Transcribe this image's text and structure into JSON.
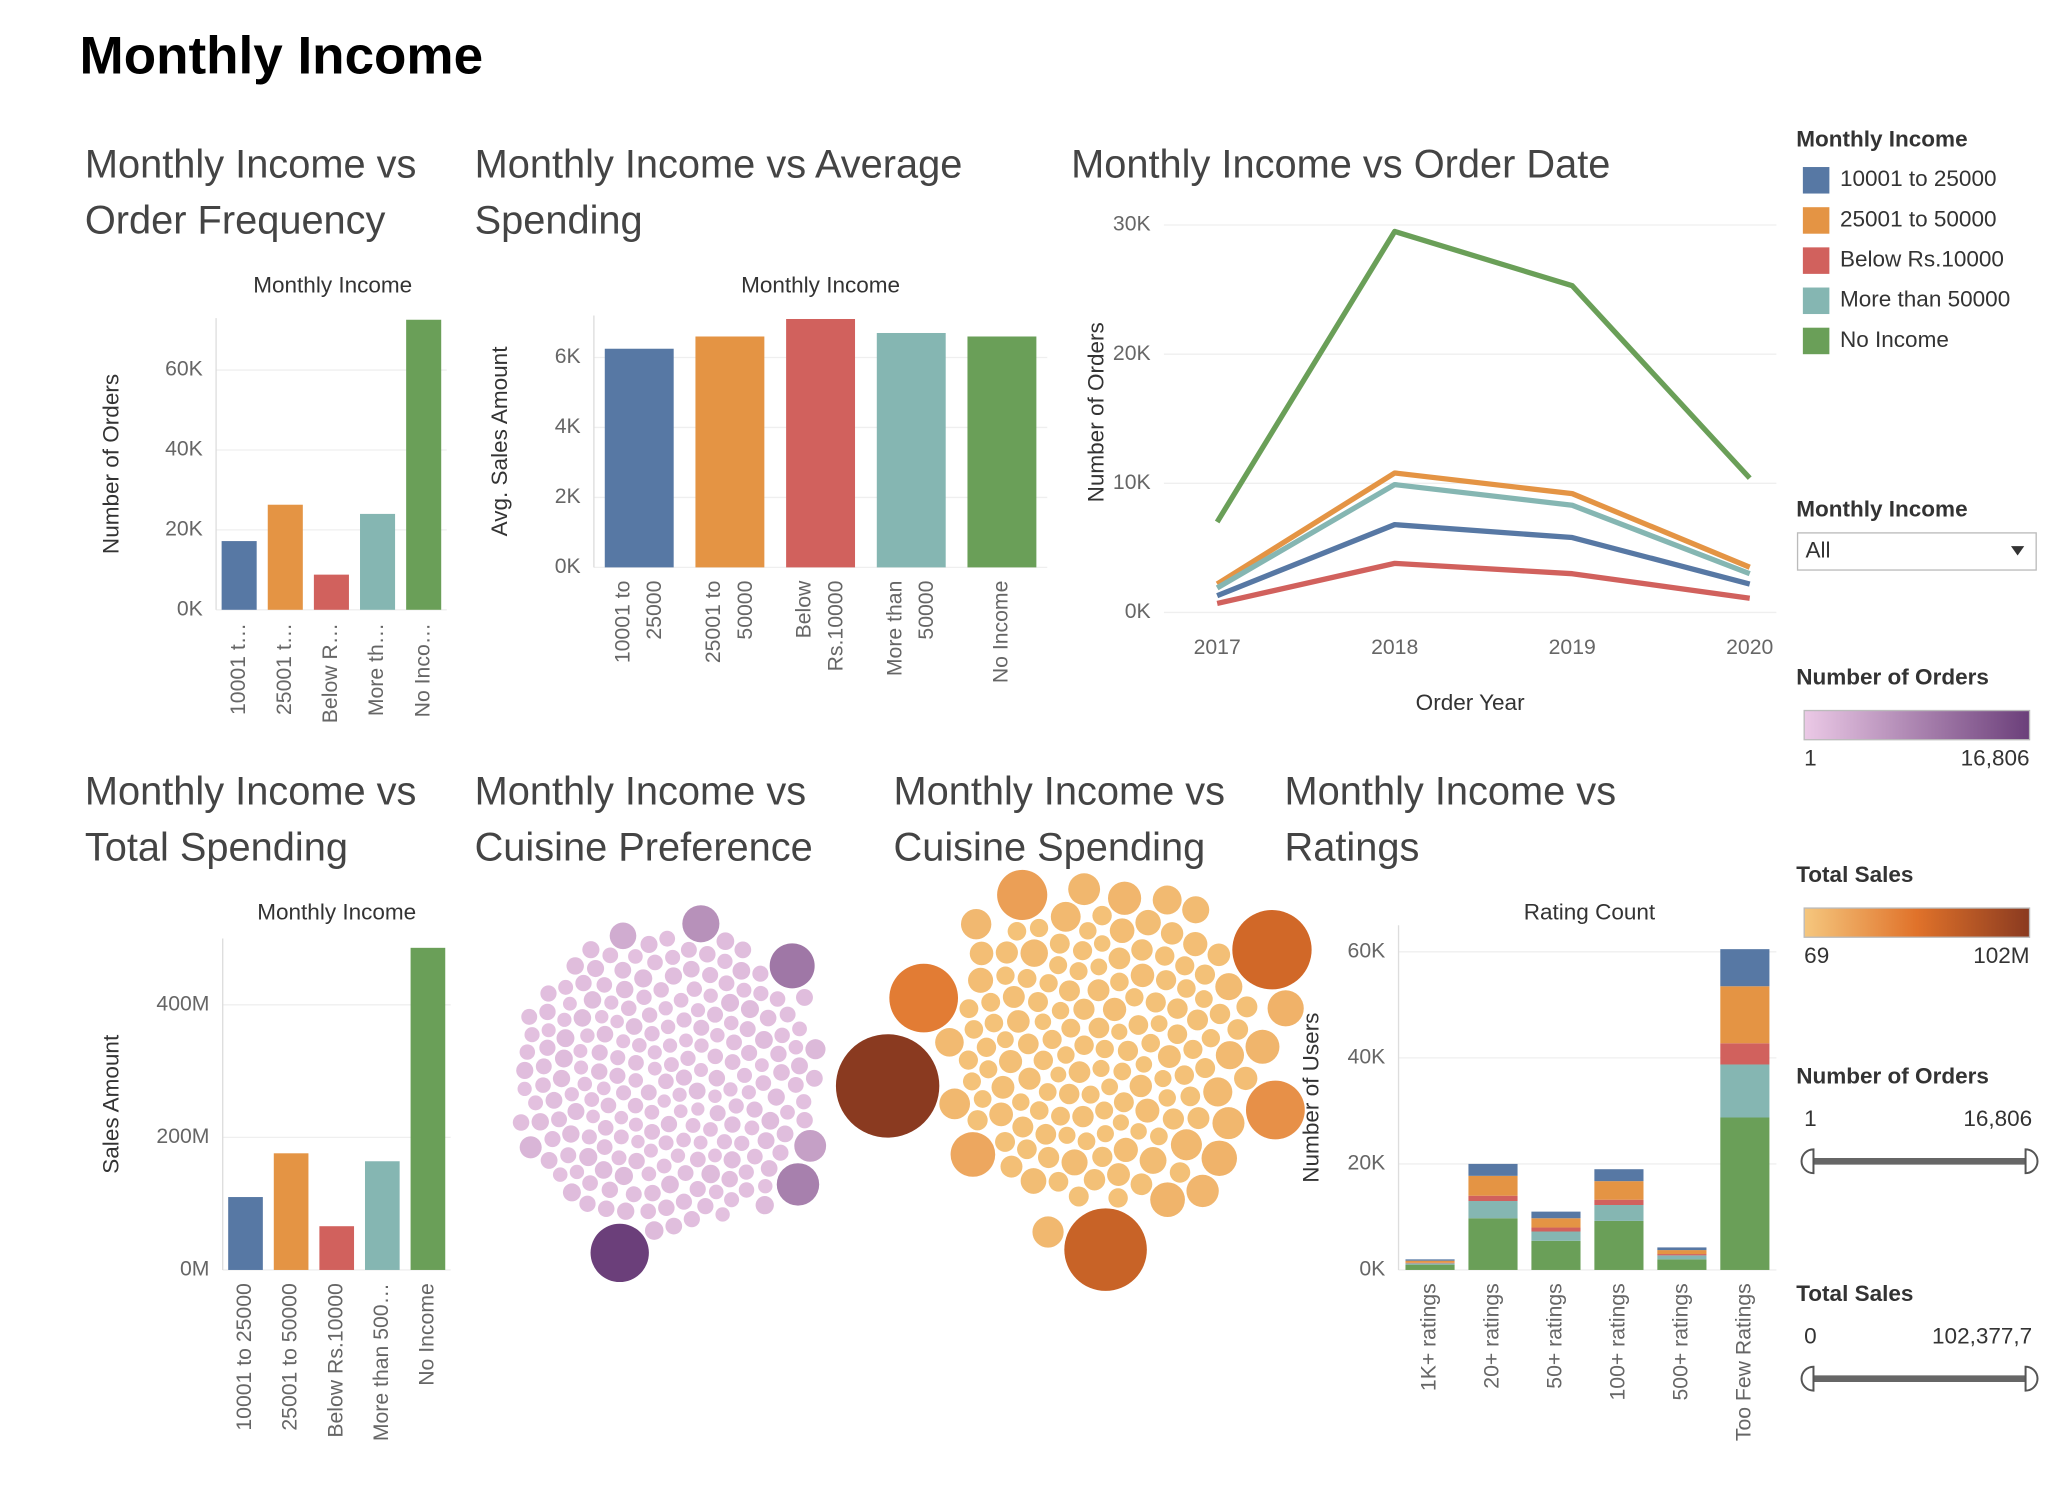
{
  "title": "Monthly Income",
  "filters": [
    {
      "title": "Monthly Income",
      "selected": "All"
    },
    {
      "title": "Number of Orders",
      "min": 1,
      "max": {
        "value": 16806,
        "label": "16,806"
      }
    },
    {
      "title": "Total Sales",
      "min": 0,
      "max": {
        "value": 102377700,
        "label": "102,377,7"
      }
    }
  ],
  "chart_data": [
    {
      "type": "bar",
      "title": "Monthly Income vs Order Frequency",
      "x_header": "Monthly Income",
      "y_label": "Number of Orders",
      "categories": [
        "10001 t…",
        "25001 t…",
        "Below R…",
        "More th…",
        "No Inco…"
      ],
      "values": [
        17200,
        26300,
        8800,
        24000,
        72600
      ],
      "colors": [
        "#5778a4",
        "#e49444",
        "#d1615d",
        "#85b6b2",
        "#6a9f58"
      ],
      "ylim": [
        0,
        73000
      ],
      "yticks": [
        {
          "value": 0,
          "label": "0K"
        },
        {
          "value": 20000,
          "label": "20K"
        },
        {
          "value": 40000,
          "label": "40K"
        },
        {
          "value": 60000,
          "label": "60K"
        }
      ]
    },
    {
      "type": "bar",
      "title": "Monthly Income vs Average Spending",
      "x_header": "Monthly Income",
      "y_label": "Avg. Sales Amount",
      "categories": [
        "10001 to 25000",
        "25001 to 50000",
        "Below Rs.10000",
        "More than 50000",
        "No Income"
      ],
      "values": [
        6250,
        6600,
        7100,
        6700,
        6600
      ],
      "colors": [
        "#5778a4",
        "#e49444",
        "#d1615d",
        "#85b6b2",
        "#6a9f58"
      ],
      "ylim": [
        0,
        7200
      ],
      "yticks": [
        {
          "value": 0,
          "label": "0K"
        },
        {
          "value": 2000,
          "label": "2K"
        },
        {
          "value": 4000,
          "label": "4K"
        },
        {
          "value": 6000,
          "label": "6K"
        }
      ]
    },
    {
      "type": "line",
      "title": "Monthly Income vs Order Date",
      "x_label": "Order Year",
      "y_label": "Number of Orders",
      "legend_title": "Monthly Income",
      "x": [
        2017,
        2018,
        2019,
        2020
      ],
      "series": [
        {
          "name": "10001 to 25000",
          "color": "#5778a4",
          "values": [
            1300,
            6800,
            5800,
            2200
          ]
        },
        {
          "name": "25001 to 50000",
          "color": "#e49444",
          "values": [
            2200,
            10800,
            9200,
            3500
          ]
        },
        {
          "name": "Below Rs.10000",
          "color": "#d1615d",
          "values": [
            700,
            3800,
            3000,
            1100
          ]
        },
        {
          "name": "More than 50000",
          "color": "#85b6b2",
          "values": [
            1900,
            9900,
            8300,
            3000
          ]
        },
        {
          "name": "No Income",
          "color": "#6a9f58",
          "values": [
            7000,
            29500,
            25300,
            10400
          ]
        }
      ],
      "xlim": [
        2016.7,
        2020.15
      ],
      "xticks": [
        2017,
        2018,
        2019,
        2020
      ],
      "ylim": [
        0,
        31000
      ],
      "yticks": [
        {
          "value": 0,
          "label": "0K"
        },
        {
          "value": 10000,
          "label": "10K"
        },
        {
          "value": 20000,
          "label": "20K"
        },
        {
          "value": 30000,
          "label": "30K"
        }
      ]
    },
    {
      "type": "bar",
      "title": "Monthly Income vs Total Spending",
      "x_header": "Monthly Income",
      "y_label": "Sales Amount",
      "categories": [
        "10001 to 25000",
        "25001 to 50000",
        "Below Rs.10000",
        "More than 500…",
        "No Income"
      ],
      "values": [
        110000000,
        176000000,
        66000000,
        164000000,
        486000000
      ],
      "colors": [
        "#5778a4",
        "#e49444",
        "#d1615d",
        "#85b6b2",
        "#6a9f58"
      ],
      "ylim": [
        0,
        500000000
      ],
      "yticks": [
        {
          "value": 0,
          "label": "0M"
        },
        {
          "value": 200000000,
          "label": "200M"
        },
        {
          "value": 400000000,
          "label": "400M"
        }
      ]
    },
    {
      "type": "stacked_bar",
      "title": "Monthly Income vs Ratings",
      "x_header": "Rating Count",
      "y_label": "Number of Users",
      "categories": [
        "1K+ ratings",
        "20+ ratings",
        "50+ ratings",
        "100+ ratings",
        "500+ ratings",
        "Too Few Ratings"
      ],
      "series": [
        {
          "name": "No Income",
          "color": "#6a9f58",
          "values": [
            1000,
            9750,
            5500,
            9250,
            2000,
            28750
          ]
        },
        {
          "name": "More than 50000",
          "color": "#85b6b2",
          "values": [
            250,
            3250,
            1750,
            3000,
            750,
            10000
          ]
        },
        {
          "name": "Below Rs.10000",
          "color": "#d1615d",
          "values": [
            100,
            1000,
            750,
            1000,
            250,
            4000
          ]
        },
        {
          "name": "25001 to 50000",
          "color": "#e49444",
          "values": [
            400,
            3750,
            1750,
            3500,
            750,
            10750
          ]
        },
        {
          "name": "10001 to 25000",
          "color": "#5778a4",
          "values": [
            250,
            2250,
            1250,
            2250,
            500,
            7000
          ]
        }
      ],
      "ylim": [
        0,
        65000
      ],
      "yticks": [
        {
          "value": 0,
          "label": "0K"
        },
        {
          "value": 20000,
          "label": "20K"
        },
        {
          "value": 40000,
          "label": "40K"
        },
        {
          "value": 60000,
          "label": "60K"
        }
      ]
    },
    {
      "type": "bubble",
      "title": "Monthly Income vs Cuisine Preference",
      "color_range": [
        "#ebc9e6",
        "#6b3f7a"
      ],
      "color_legend": {
        "title": "Number of Orders",
        "min": 1,
        "max": {
          "value": 16806,
          "label": "16,806"
        }
      },
      "values": [
        1200,
        950,
        1100,
        1300,
        1000,
        880,
        1250,
        1050,
        990,
        1150,
        1400,
        920,
        1080,
        1220,
        1010,
        960,
        1180,
        1320,
        870,
        1120,
        1050,
        1280,
        940,
        1160,
        1020,
        1350,
        900,
        1090,
        1240,
        980,
        1130,
        1030,
        1190,
        910,
        1270,
        1060,
        970,
        1210,
        1110,
        1380,
        930,
        1140,
        1260,
        1000,
        1070,
        1330,
        890,
        1170,
        1040,
        1230,
        960,
        1100,
        1290,
        1010,
        1150,
        950,
        1200,
        1080,
        1360,
        1020,
        1240,
        990,
        1120,
        1310,
        1040,
        910,
        1190,
        1070,
        1260,
        1000,
        1140,
        930,
        1220,
        1090,
        1340,
        980,
        1160,
        1050,
        1280,
        940,
        1100,
        1230,
        960,
        1180,
        1030,
        1300,
        900,
        1250,
        1060,
        1130,
        1420,
        990,
        1170,
        1020,
        1270,
        950,
        1210,
        1080,
        1150,
        1010,
        1500,
        1600,
        1700,
        1450,
        1550,
        1650,
        1480,
        1580,
        1520,
        1620,
        1470,
        1570,
        1530,
        1630,
        1490,
        1590,
        1510,
        1610,
        1460,
        1560,
        1300,
        1350,
        1250,
        1400,
        1200,
        1380,
        1280,
        1320,
        1360,
        1240,
        1420,
        1220,
        1340,
        1260,
        1390,
        1210,
        1370,
        1290,
        1330,
        1270,
        1100,
        1150,
        1200,
        1050,
        1250,
        1000,
        1300,
        950,
        1350,
        1120,
        1180,
        1080,
        1220,
        1020,
        1280,
        980,
        1320,
        1060,
        1240,
        1140,
        1400,
        1300,
        1200,
        1500,
        1100,
        1450,
        1250,
        1350,
        1150,
        1550,
        1050,
        1420,
        1280,
        1380,
        1180,
        1480,
        1120,
        1320,
        1220,
        1440,
        1200,
        1250,
        1150,
        1300,
        1100,
        1350,
        1050,
        1400,
        1000,
        1450,
        1180,
        1230,
        1130,
        1280,
        1080,
        1330,
        1030,
        1380,
        1020,
        1310,
        1600,
        2400,
        1300,
        1500,
        3500,
        1400,
        1700,
        5000,
        1350,
        1450,
        6800,
        1550,
        1250,
        2000,
        8900,
        1650,
        1380,
        10000,
        1420,
        16806
      ]
    },
    {
      "type": "bubble",
      "title": "Monthly Income vs Cuisine Spending",
      "color_range": [
        "#f5c77e",
        "#e0722a",
        "#8a3a20"
      ],
      "color_legend": {
        "title": "Total Sales",
        "min": 69,
        "max": {
          "value": 102000000,
          "label": "102M"
        }
      },
      "values": [
        3200000,
        2800000,
        3600000,
        4100000,
        2500000,
        3900000,
        3000000,
        4500000,
        2700000,
        3400000,
        5200000,
        2900000,
        3700000,
        4300000,
        2600000,
        3300000,
        4800000,
        3100000,
        3800000,
        2400000,
        4000000,
        3500000,
        2900000,
        4600000,
        3200000,
        2700000,
        5000000,
        3600000,
        3100000,
        4200000,
        2800000,
        3900000,
        4400000,
        2600000,
        3300000,
        5500000,
        3000000,
        3700000,
        4100000,
        2500000,
        3400000,
        4700000,
        2900000,
        3800000,
        3100000,
        5300000,
        2700000,
        4000000,
        3600000,
        2800000,
        4900000,
        3200000,
        3500000,
        4500000,
        2600000,
        3900000,
        3300000,
        5100000,
        3000000,
        4200000,
        3700000,
        2800000,
        4300000,
        3100000,
        5600000,
        2900000,
        3500000,
        4100000,
        3300000,
        2700000,
        4600000,
        3800000,
        3000000,
        5000000,
        3400000,
        2600000,
        4400000,
        3200000,
        3900000,
        3600000,
        6500000,
        4200000,
        3300000,
        7200000,
        3800000,
        5800000,
        3000000,
        8100000,
        4600000,
        3500000,
        6900000,
        3100000,
        4000000,
        9200000,
        3600000,
        5400000,
        2900000,
        7600000,
        4300000,
        3400000,
        3900000,
        5000000,
        3200000,
        6200000,
        3700000,
        4400000,
        8500000,
        3000000,
        4800000,
        3600000,
        7000000,
        3300000,
        4100000,
        5600000,
        3800000,
        9800000,
        3100000,
        4700000,
        3500000,
        6000000,
        4500000,
        3200000,
        5200000,
        3700000,
        10500000,
        4000000,
        3400000,
        6300000,
        3900000,
        4900000,
        12000000,
        3600000,
        4200000,
        7800000,
        3300000,
        11000000,
        4600000,
        3800000,
        9000000,
        5300000,
        9700000,
        19000000,
        8000000,
        11500000,
        24000000,
        7000000,
        33000000,
        10000000,
        45000000,
        8800000,
        60000000,
        12500000,
        65000000,
        9300000,
        102000000
      ]
    }
  ]
}
